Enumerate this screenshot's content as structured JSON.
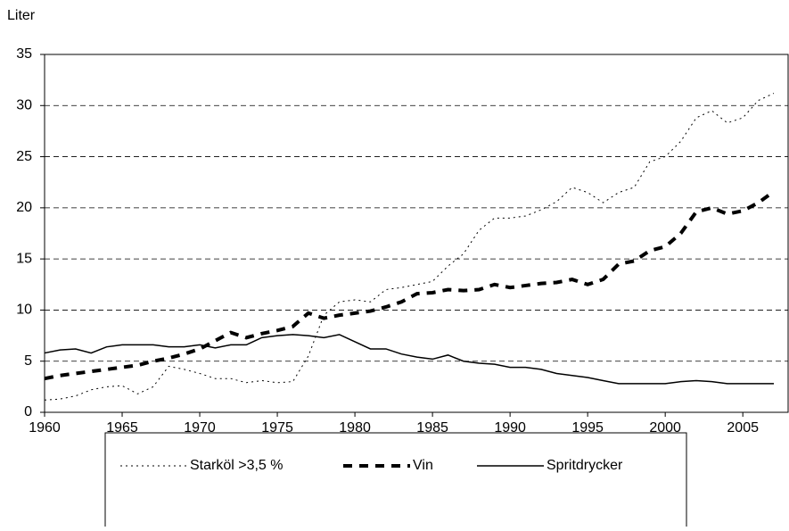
{
  "chart_data": {
    "type": "line",
    "y_label": "Liter",
    "x": [
      1960,
      1961,
      1962,
      1963,
      1964,
      1965,
      1966,
      1967,
      1968,
      1969,
      1970,
      1971,
      1972,
      1973,
      1974,
      1975,
      1976,
      1977,
      1978,
      1979,
      1980,
      1981,
      1982,
      1983,
      1984,
      1985,
      1986,
      1987,
      1988,
      1989,
      1990,
      1991,
      1992,
      1993,
      1994,
      1995,
      1996,
      1997,
      1998,
      1999,
      2000,
      2001,
      2002,
      2003,
      2004,
      2005,
      2006,
      2007
    ],
    "series": [
      {
        "name": "Starköl >3,5 %",
        "color": "#000000",
        "style": "dotted",
        "values": [
          1.2,
          1.3,
          1.6,
          2.2,
          2.5,
          2.6,
          1.8,
          2.5,
          4.5,
          4.2,
          3.8,
          3.3,
          3.3,
          2.9,
          3.1,
          2.9,
          3.0,
          5.5,
          9.5,
          10.8,
          11.0,
          10.8,
          12.0,
          12.2,
          12.5,
          12.8,
          14.3,
          15.5,
          17.8,
          19.0,
          19.0,
          19.2,
          19.8,
          20.6,
          22.0,
          21.5,
          20.5,
          21.5,
          22.0,
          24.5,
          25.0,
          26.5,
          28.8,
          29.5,
          28.3,
          28.8,
          30.5,
          31.2
        ]
      },
      {
        "name": "Vin",
        "color": "#000000",
        "style": "dashed",
        "values": [
          3.3,
          3.6,
          3.8,
          4.0,
          4.2,
          4.4,
          4.6,
          5.0,
          5.3,
          5.7,
          6.2,
          7.0,
          7.8,
          7.3,
          7.7,
          8.0,
          8.4,
          9.7,
          9.2,
          9.5,
          9.7,
          9.9,
          10.3,
          10.8,
          11.6,
          11.7,
          12.0,
          11.9,
          12.0,
          12.5,
          12.2,
          12.4,
          12.6,
          12.7,
          13.0,
          12.5,
          13.0,
          14.5,
          14.8,
          15.8,
          16.2,
          17.5,
          19.6,
          20.0,
          19.4,
          19.7,
          20.5,
          21.6
        ]
      },
      {
        "name": "Spritdrycker",
        "color": "#000000",
        "style": "solid",
        "values": [
          5.8,
          6.1,
          6.2,
          5.8,
          6.4,
          6.6,
          6.6,
          6.6,
          6.4,
          6.4,
          6.6,
          6.3,
          6.6,
          6.6,
          7.3,
          7.5,
          7.6,
          7.5,
          7.3,
          7.6,
          6.9,
          6.2,
          6.2,
          5.7,
          5.4,
          5.2,
          5.6,
          5.0,
          4.8,
          4.7,
          4.4,
          4.4,
          4.2,
          3.8,
          3.6,
          3.4,
          3.1,
          2.8,
          2.8,
          2.8,
          2.8,
          3.0,
          3.1,
          3.0,
          2.8,
          2.8,
          2.8,
          2.8
        ]
      }
    ],
    "xlim": [
      1960,
      2007
    ],
    "xticks": [
      1960,
      1965,
      1970,
      1975,
      1980,
      1985,
      1990,
      1995,
      2000,
      2005
    ],
    "ylim": [
      0,
      35
    ],
    "yticks": [
      0,
      5,
      10,
      15,
      20,
      25,
      30,
      35
    ],
    "grid": true,
    "legend": "bottom"
  }
}
